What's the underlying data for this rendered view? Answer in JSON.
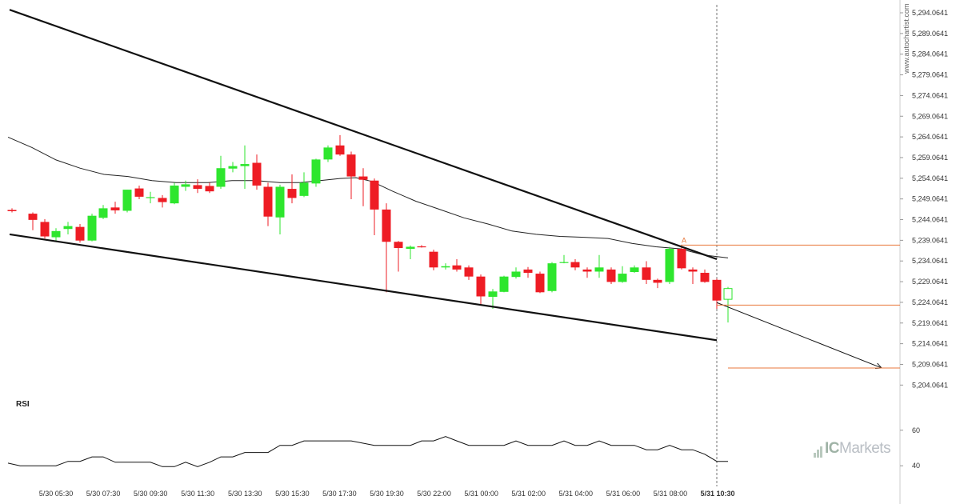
{
  "chart_data": {
    "type": "candlestick",
    "y_ticks": [
      "5,294.0641",
      "5,289.0641",
      "5,284.0641",
      "5,279.0641",
      "5,274.0641",
      "5,269.0641",
      "5,264.0641",
      "5,259.0641",
      "5,254.0641",
      "5,249.0641",
      "5,244.0641",
      "5,239.0641",
      "5,234.0641",
      "5,229.0641",
      "5,224.0641",
      "5,219.0641",
      "5,214.0641",
      "5,209.0641",
      "5,204.0641"
    ],
    "ylim": [
      5202,
      5296
    ],
    "x_ticks": [
      "5/30 05:30",
      "5/30 07:30",
      "5/30 09:30",
      "5/30 11:30",
      "5/30 13:30",
      "5/30 15:30",
      "5/30 17:30",
      "5/30 19:30",
      "5/30 22:00",
      "5/31 00:00",
      "5/31 02:00",
      "5/31 04:00",
      "5/31 06:00",
      "5/31 08:00",
      "5/31 10:30"
    ],
    "highlighted_x_tick": "5/31 10:30",
    "candles": [
      {
        "x": 15,
        "o": 5246.4,
        "h": 5246.8,
        "l": 5245.8,
        "c": 5246.1
      },
      {
        "x": 41,
        "o": 5245.5,
        "h": 5245.8,
        "l": 5241.5,
        "c": 5244.0
      },
      {
        "x": 56,
        "o": 5243.5,
        "h": 5244.2,
        "l": 5239.5,
        "c": 5240.0
      },
      {
        "x": 70,
        "o": 5239.8,
        "h": 5242.0,
        "l": 5238.8,
        "c": 5241.3
      },
      {
        "x": 85,
        "o": 5241.8,
        "h": 5243.5,
        "l": 5240.5,
        "c": 5242.5
      },
      {
        "x": 100,
        "o": 5242.3,
        "h": 5243.0,
        "l": 5238.5,
        "c": 5239.0
      },
      {
        "x": 115,
        "o": 5239.0,
        "h": 5245.5,
        "l": 5238.8,
        "c": 5245.0
      },
      {
        "x": 129,
        "o": 5244.5,
        "h": 5247.6,
        "l": 5244.2,
        "c": 5246.8
      },
      {
        "x": 144,
        "o": 5247.0,
        "h": 5248.4,
        "l": 5245.5,
        "c": 5246.3
      },
      {
        "x": 159,
        "o": 5246.2,
        "h": 5251.3,
        "l": 5245.8,
        "c": 5251.3
      },
      {
        "x": 174,
        "o": 5251.6,
        "h": 5252.3,
        "l": 5249.0,
        "c": 5249.6
      },
      {
        "x": 188,
        "o": 5249.3,
        "h": 5250.8,
        "l": 5248.0,
        "c": 5249.5
      },
      {
        "x": 203,
        "o": 5249.3,
        "h": 5250.0,
        "l": 5247.0,
        "c": 5248.3
      },
      {
        "x": 218,
        "o": 5248.0,
        "h": 5253.0,
        "l": 5247.8,
        "c": 5252.3
      },
      {
        "x": 232,
        "o": 5252.0,
        "h": 5253.5,
        "l": 5251.0,
        "c": 5252.6
      },
      {
        "x": 247,
        "o": 5252.4,
        "h": 5253.8,
        "l": 5250.5,
        "c": 5251.5
      },
      {
        "x": 262,
        "o": 5252.2,
        "h": 5253.0,
        "l": 5250.5,
        "c": 5250.9
      },
      {
        "x": 276,
        "o": 5252.0,
        "h": 5259.5,
        "l": 5251.5,
        "c": 5256.5
      },
      {
        "x": 291,
        "o": 5256.4,
        "h": 5258.0,
        "l": 5255.5,
        "c": 5257.0
      },
      {
        "x": 306,
        "o": 5257.0,
        "h": 5262.0,
        "l": 5251.5,
        "c": 5257.5
      },
      {
        "x": 321,
        "o": 5257.8,
        "h": 5259.8,
        "l": 5251.3,
        "c": 5252.3
      },
      {
        "x": 335,
        "o": 5252.0,
        "h": 5253.0,
        "l": 5242.5,
        "c": 5244.8
      },
      {
        "x": 350,
        "o": 5244.6,
        "h": 5252.5,
        "l": 5240.5,
        "c": 5252.0
      },
      {
        "x": 365,
        "o": 5251.5,
        "h": 5255.0,
        "l": 5248.0,
        "c": 5249.3
      },
      {
        "x": 380,
        "o": 5249.8,
        "h": 5255.5,
        "l": 5249.5,
        "c": 5253.0
      },
      {
        "x": 395,
        "o": 5252.8,
        "h": 5258.8,
        "l": 5252.0,
        "c": 5258.6
      },
      {
        "x": 410,
        "o": 5258.6,
        "h": 5262.0,
        "l": 5258.0,
        "c": 5261.5
      },
      {
        "x": 425,
        "o": 5262.0,
        "h": 5264.5,
        "l": 5259.5,
        "c": 5259.8
      },
      {
        "x": 439,
        "o": 5259.8,
        "h": 5260.5,
        "l": 5249.0,
        "c": 5254.5
      },
      {
        "x": 454,
        "o": 5254.5,
        "h": 5256.5,
        "l": 5247.3,
        "c": 5253.7
      },
      {
        "x": 468,
        "o": 5253.5,
        "h": 5254.0,
        "l": 5240.3,
        "c": 5246.5
      },
      {
        "x": 483,
        "o": 5246.5,
        "h": 5248.0,
        "l": 5226.5,
        "c": 5238.7
      },
      {
        "x": 498,
        "o": 5238.7,
        "h": 5238.9,
        "l": 5231.5,
        "c": 5237.2
      },
      {
        "x": 513,
        "o": 5237.0,
        "h": 5237.8,
        "l": 5234.5,
        "c": 5237.5
      },
      {
        "x": 527,
        "o": 5237.6,
        "h": 5237.9,
        "l": 5237.3,
        "c": 5237.5
      },
      {
        "x": 542,
        "o": 5236.3,
        "h": 5236.8,
        "l": 5231.8,
        "c": 5232.5
      },
      {
        "x": 557,
        "o": 5232.5,
        "h": 5233.5,
        "l": 5232.0,
        "c": 5232.8
      },
      {
        "x": 571,
        "o": 5233.0,
        "h": 5234.5,
        "l": 5231.5,
        "c": 5232.0
      },
      {
        "x": 586,
        "o": 5232.5,
        "h": 5233.0,
        "l": 5229.5,
        "c": 5230.3
      },
      {
        "x": 601,
        "o": 5230.3,
        "h": 5230.8,
        "l": 5223.3,
        "c": 5225.5
      },
      {
        "x": 616,
        "o": 5225.4,
        "h": 5227.3,
        "l": 5222.5,
        "c": 5226.7
      },
      {
        "x": 630,
        "o": 5226.6,
        "h": 5230.5,
        "l": 5226.5,
        "c": 5230.3
      },
      {
        "x": 645,
        "o": 5230.2,
        "h": 5232.5,
        "l": 5229.8,
        "c": 5231.5
      },
      {
        "x": 660,
        "o": 5232.0,
        "h": 5232.6,
        "l": 5230.0,
        "c": 5231.2
      },
      {
        "x": 675,
        "o": 5231.0,
        "h": 5231.5,
        "l": 5226.3,
        "c": 5226.5
      },
      {
        "x": 690,
        "o": 5226.8,
        "h": 5233.8,
        "l": 5226.5,
        "c": 5233.5
      },
      {
        "x": 705,
        "o": 5233.6,
        "h": 5235.5,
        "l": 5233.5,
        "c": 5233.8
      },
      {
        "x": 719,
        "o": 5233.8,
        "h": 5234.5,
        "l": 5231.8,
        "c": 5232.5
      },
      {
        "x": 734,
        "o": 5232.0,
        "h": 5232.5,
        "l": 5230.0,
        "c": 5231.5
      },
      {
        "x": 749,
        "o": 5231.5,
        "h": 5235.5,
        "l": 5230.0,
        "c": 5232.5
      },
      {
        "x": 764,
        "o": 5232.0,
        "h": 5232.5,
        "l": 5228.5,
        "c": 5229.0
      },
      {
        "x": 778,
        "o": 5229.0,
        "h": 5232.8,
        "l": 5228.8,
        "c": 5231.0
      },
      {
        "x": 793,
        "o": 5231.4,
        "h": 5233.0,
        "l": 5231.2,
        "c": 5232.5
      },
      {
        "x": 808,
        "o": 5232.5,
        "h": 5234.0,
        "l": 5228.5,
        "c": 5229.5
      },
      {
        "x": 822,
        "o": 5229.5,
        "h": 5229.8,
        "l": 5227.5,
        "c": 5228.8
      },
      {
        "x": 837,
        "o": 5229.0,
        "h": 5237.5,
        "l": 5228.5,
        "c": 5237.0
      },
      {
        "x": 852,
        "o": 5237.0,
        "h": 5237.5,
        "l": 5232.0,
        "c": 5232.3
      },
      {
        "x": 866,
        "o": 5232.0,
        "h": 5232.5,
        "l": 5228.5,
        "c": 5231.5
      },
      {
        "x": 881,
        "o": 5231.2,
        "h": 5232.0,
        "l": 5228.8,
        "c": 5229.0
      },
      {
        "x": 896,
        "o": 5229.5,
        "h": 5229.8,
        "l": 5222.5,
        "c": 5224.5
      },
      {
        "x": 910,
        "o": 5224.8,
        "h": 5227.8,
        "l": 5219.2,
        "c": 5227.4
      }
    ],
    "moving_average": [
      {
        "x": 10,
        "y": 5264.0
      },
      {
        "x": 40,
        "y": 5261.5
      },
      {
        "x": 70,
        "y": 5258.5
      },
      {
        "x": 100,
        "y": 5256.5
      },
      {
        "x": 130,
        "y": 5255.0
      },
      {
        "x": 160,
        "y": 5254.5
      },
      {
        "x": 190,
        "y": 5253.5
      },
      {
        "x": 220,
        "y": 5253.0
      },
      {
        "x": 260,
        "y": 5253.0
      },
      {
        "x": 290,
        "y": 5253.5
      },
      {
        "x": 320,
        "y": 5253.5
      },
      {
        "x": 350,
        "y": 5253.0
      },
      {
        "x": 375,
        "y": 5253.0
      },
      {
        "x": 400,
        "y": 5253.5
      },
      {
        "x": 425,
        "y": 5254.0
      },
      {
        "x": 445,
        "y": 5254.2
      },
      {
        "x": 465,
        "y": 5253.3
      },
      {
        "x": 490,
        "y": 5251.0
      },
      {
        "x": 520,
        "y": 5248.5
      },
      {
        "x": 550,
        "y": 5246.5
      },
      {
        "x": 580,
        "y": 5244.5
      },
      {
        "x": 610,
        "y": 5243.0
      },
      {
        "x": 640,
        "y": 5241.3
      },
      {
        "x": 670,
        "y": 5240.5
      },
      {
        "x": 700,
        "y": 5240.0
      },
      {
        "x": 730,
        "y": 5239.8
      },
      {
        "x": 760,
        "y": 5239.5
      },
      {
        "x": 790,
        "y": 5238.3
      },
      {
        "x": 820,
        "y": 5237.5
      },
      {
        "x": 850,
        "y": 5237.0
      },
      {
        "x": 880,
        "y": 5235.5
      },
      {
        "x": 910,
        "y": 5234.8
      }
    ],
    "channel_upper": {
      "x1": 12,
      "y1": 5294.8,
      "x2": 896,
      "y2": 5234.5
    },
    "channel_lower": {
      "x1": 12,
      "y1": 5240.5,
      "x2": 896,
      "y2": 5214.9
    },
    "projection": {
      "x1": 896,
      "y1": 5224.0,
      "x2": 1102,
      "y2": 5208.2
    },
    "level_lines": [
      {
        "value": 5237.9,
        "x1": 851
      },
      {
        "value": 5223.4,
        "x1": 896
      },
      {
        "value": 5208.2,
        "x1": 910
      }
    ],
    "point_label": "A",
    "rsi": {
      "label": "RSI",
      "y_ticks": [
        "60",
        "40"
      ],
      "ylim": [
        32,
        68
      ],
      "values": [
        {
          "x": 10,
          "y": 41.5
        },
        {
          "x": 25,
          "y": 40.0
        },
        {
          "x": 70,
          "y": 40.0
        },
        {
          "x": 85,
          "y": 42.5
        },
        {
          "x": 100,
          "y": 42.5
        },
        {
          "x": 115,
          "y": 45.0
        },
        {
          "x": 129,
          "y": 45.0
        },
        {
          "x": 144,
          "y": 42.0
        },
        {
          "x": 188,
          "y": 42.0
        },
        {
          "x": 203,
          "y": 39.5
        },
        {
          "x": 218,
          "y": 39.5
        },
        {
          "x": 232,
          "y": 42.0
        },
        {
          "x": 247,
          "y": 39.5
        },
        {
          "x": 262,
          "y": 42.0
        },
        {
          "x": 276,
          "y": 45.0
        },
        {
          "x": 291,
          "y": 45.0
        },
        {
          "x": 306,
          "y": 47.5
        },
        {
          "x": 335,
          "y": 47.5
        },
        {
          "x": 350,
          "y": 51.5
        },
        {
          "x": 365,
          "y": 51.5
        },
        {
          "x": 380,
          "y": 54.0
        },
        {
          "x": 439,
          "y": 54.0
        },
        {
          "x": 468,
          "y": 51.5
        },
        {
          "x": 513,
          "y": 51.5
        },
        {
          "x": 527,
          "y": 54.0
        },
        {
          "x": 542,
          "y": 54.0
        },
        {
          "x": 557,
          "y": 56.5
        },
        {
          "x": 571,
          "y": 54.0
        },
        {
          "x": 586,
          "y": 51.5
        },
        {
          "x": 630,
          "y": 51.5
        },
        {
          "x": 645,
          "y": 54.0
        },
        {
          "x": 660,
          "y": 51.5
        },
        {
          "x": 690,
          "y": 51.5
        },
        {
          "x": 705,
          "y": 54.0
        },
        {
          "x": 719,
          "y": 51.5
        },
        {
          "x": 734,
          "y": 51.5
        },
        {
          "x": 749,
          "y": 54.0
        },
        {
          "x": 764,
          "y": 51.5
        },
        {
          "x": 793,
          "y": 51.5
        },
        {
          "x": 808,
          "y": 49.0
        },
        {
          "x": 822,
          "y": 49.0
        },
        {
          "x": 837,
          "y": 51.5
        },
        {
          "x": 852,
          "y": 49.0
        },
        {
          "x": 866,
          "y": 49.0
        },
        {
          "x": 881,
          "y": 46.5
        },
        {
          "x": 896,
          "y": 42.5
        },
        {
          "x": 910,
          "y": 42.5
        }
      ]
    },
    "colors": {
      "bull": "#2ee62e",
      "bear": "#ee1c24",
      "wick": "#555555",
      "channel": "#111111",
      "ma": "#222222",
      "level": "#e8773c",
      "label": "#e8773c",
      "rsi": "#111111",
      "projection": "#111111"
    }
  },
  "watermark": "www.autochartist.com",
  "brand": {
    "prefix": "IC",
    "suffix": "Markets"
  }
}
